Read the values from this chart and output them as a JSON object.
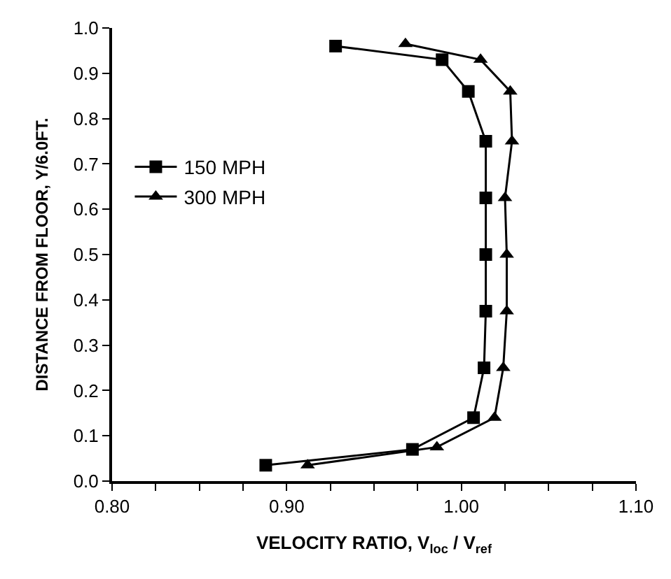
{
  "chart_data": {
    "type": "line",
    "xlabel": "VELOCITY RATIO, V$_{loc}$ / V$_{ref}$",
    "ylabel": "DISTANCE FROM FLOOR, Y/6.0FT.",
    "xlim": [
      0.8,
      1.1
    ],
    "ylim": [
      0,
      1.0
    ],
    "xticks": [
      {
        "value": 0.8,
        "label": "0.80"
      },
      {
        "value": 0.825,
        "label": null
      },
      {
        "value": 0.85,
        "label": null
      },
      {
        "value": 0.875,
        "label": null
      },
      {
        "value": 0.9,
        "label": "0.90"
      },
      {
        "value": 0.925,
        "label": null
      },
      {
        "value": 0.95,
        "label": null
      },
      {
        "value": 0.975,
        "label": null
      },
      {
        "value": 1.0,
        "label": "1.00"
      },
      {
        "value": 1.025,
        "label": null
      },
      {
        "value": 1.05,
        "label": null
      },
      {
        "value": 1.075,
        "label": null
      },
      {
        "value": 1.1,
        "label": "1.10"
      }
    ],
    "yticks": [
      {
        "value": 0,
        "label": "0.0"
      },
      {
        "value": 0.1,
        "label": "0.1"
      },
      {
        "value": 0.2,
        "label": "0.2"
      },
      {
        "value": 0.3,
        "label": "0.3"
      },
      {
        "value": 0.4,
        "label": "0.4"
      },
      {
        "value": 0.5,
        "label": "0.5"
      },
      {
        "value": 0.6,
        "label": "0.6"
      },
      {
        "value": 0.7,
        "label": "0.7"
      },
      {
        "value": 0.8,
        "label": "0.8"
      },
      {
        "value": 0.9,
        "label": "0.9"
      },
      {
        "value": 1.0,
        "label": "1.0"
      }
    ],
    "legend": "left",
    "line_style": "solid",
    "series": [
      {
        "name": "150 MPH",
        "color": "#000000",
        "marker": "square",
        "x": [
          0.888,
          0.972,
          1.007,
          1.013,
          1.014,
          1.014,
          1.014,
          1.014,
          1.004,
          0.989,
          0.928
        ],
        "values": [
          0.035,
          0.07,
          0.14,
          0.25,
          0.375,
          0.5,
          0.625,
          0.75,
          0.86,
          0.93,
          0.96
        ]
      },
      {
        "name": "300 MPH",
        "color": "#000000",
        "marker": "triangle",
        "x": [
          0.912,
          0.986,
          1.019,
          1.024,
          1.026,
          1.026,
          1.025,
          1.029,
          1.028,
          1.011,
          0.968
        ],
        "values": [
          0.035,
          0.075,
          0.14,
          0.25,
          0.375,
          0.5,
          0.625,
          0.75,
          0.86,
          0.93,
          0.965
        ]
      }
    ]
  }
}
